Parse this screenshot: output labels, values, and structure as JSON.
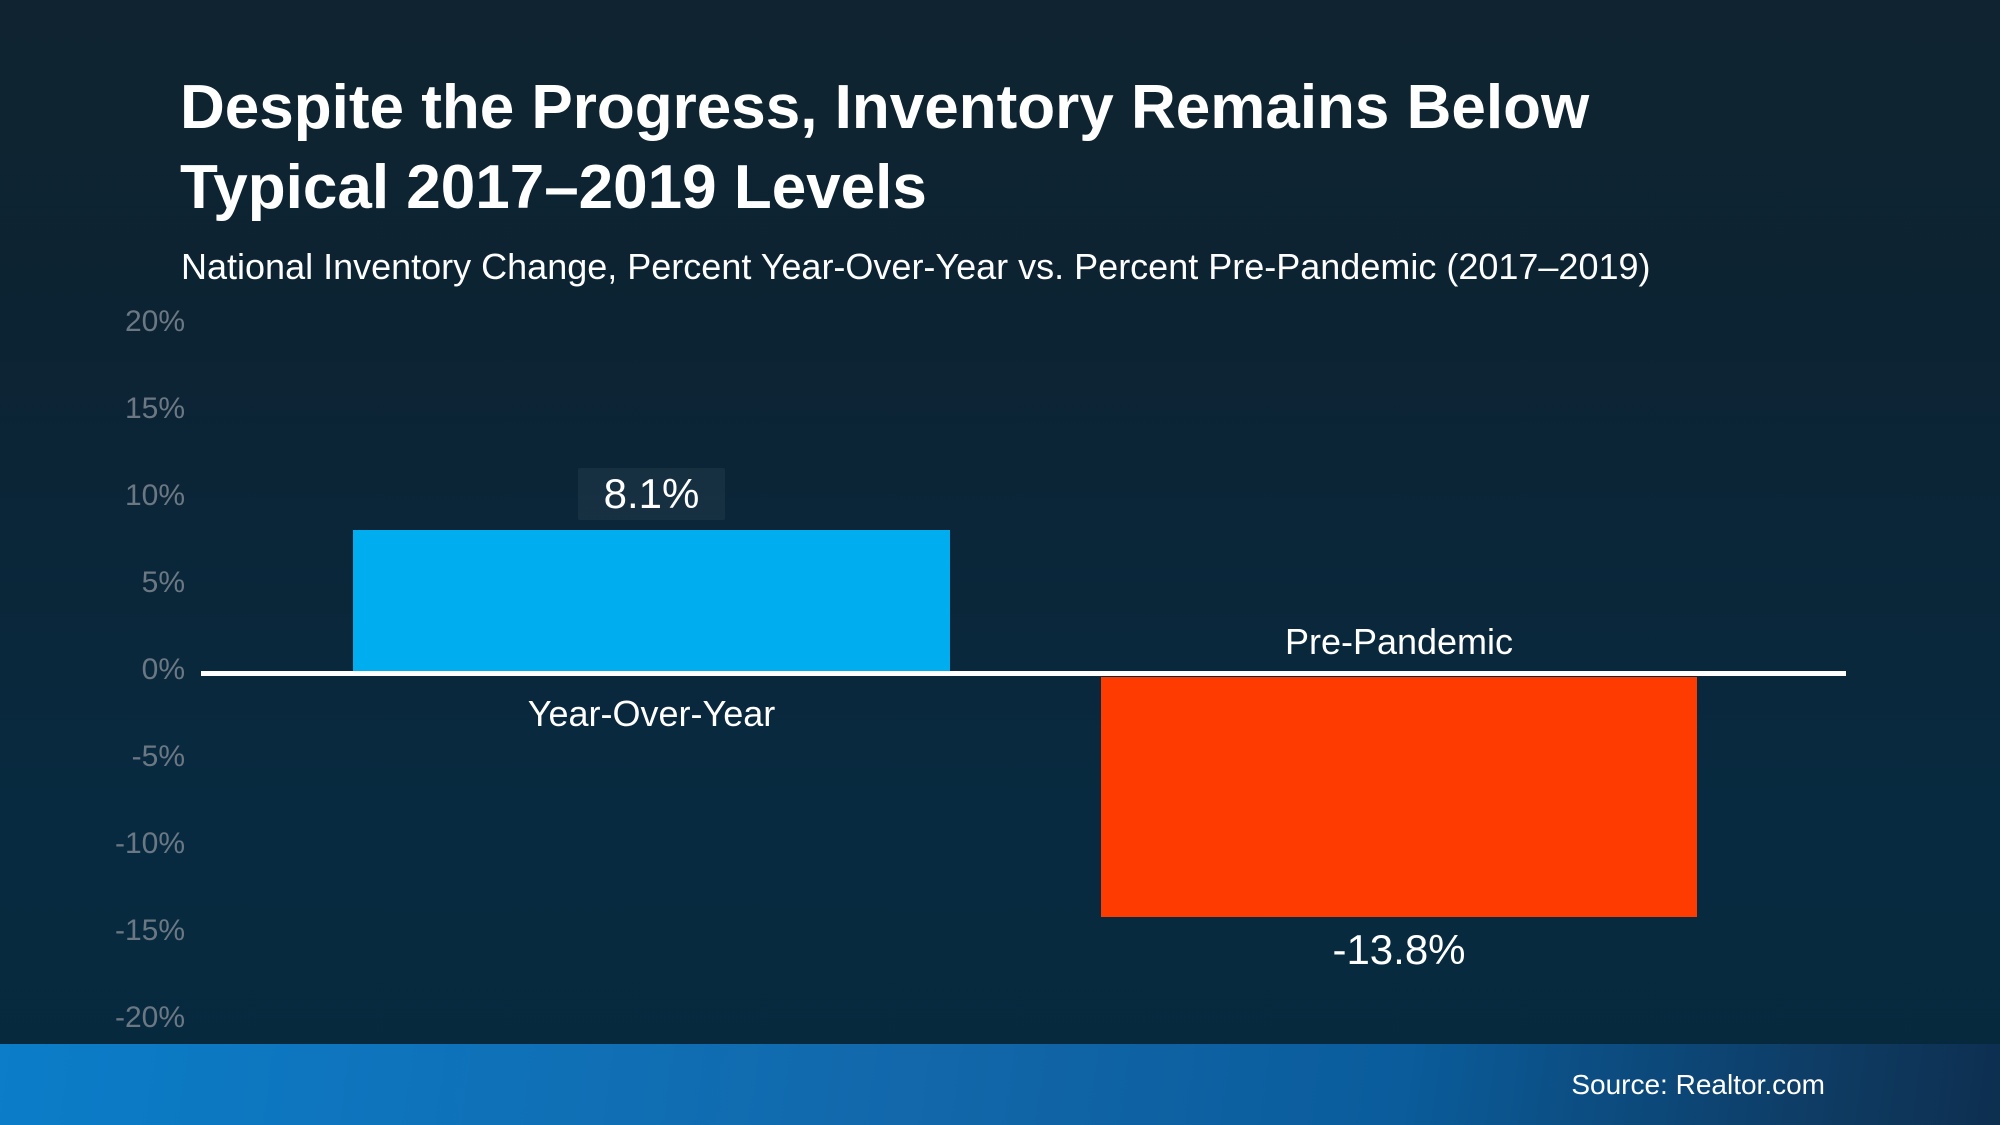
{
  "header": {
    "title_line1": "Despite the Progress, Inventory Remains Below",
    "title_line2": "Typical 2017–2019 Levels",
    "subtitle": "National Inventory Change, Percent Year-Over-Year vs. Percent Pre-Pandemic (2017–2019)"
  },
  "chart_data": {
    "type": "bar",
    "title": "Despite the Progress, Inventory Remains Below Typical 2017–2019 Levels",
    "subtitle": "National Inventory Change, Percent Year-Over-Year vs. Percent Pre-Pandemic (2017–2019)",
    "categories": [
      "Year-Over-Year",
      "Pre-Pandemic"
    ],
    "values": [
      8.1,
      -13.8
    ],
    "series": [
      {
        "name": "Year-Over-Year",
        "value": 8.1,
        "value_label": "8.1%",
        "color": "#00adee"
      },
      {
        "name": "Pre-Pandemic",
        "value": -13.8,
        "value_label": "-13.8%",
        "color": "#fe3b01"
      }
    ],
    "ylim": [
      -20,
      20
    ],
    "ytick_step": 5,
    "yticks": [
      "20%",
      "15%",
      "10%",
      "5%",
      "0%",
      "-5%",
      "-10%",
      "-15%",
      "-20%"
    ],
    "grid": false,
    "legend": "none",
    "axis_line_color": "#ffffff",
    "tick_color": "#6b7883"
  },
  "footer": {
    "source": "Source: Realtor.com"
  },
  "colors": {
    "background_top": "#0f2430",
    "background_bottom": "#06293e",
    "bar_positive": "#00adee",
    "bar_negative": "#fe3b01",
    "footer_band_left": "#0b7dc9",
    "footer_band_right": "#0d2f50",
    "value_badge_bg": "rgba(255,255,255,0.05)"
  }
}
